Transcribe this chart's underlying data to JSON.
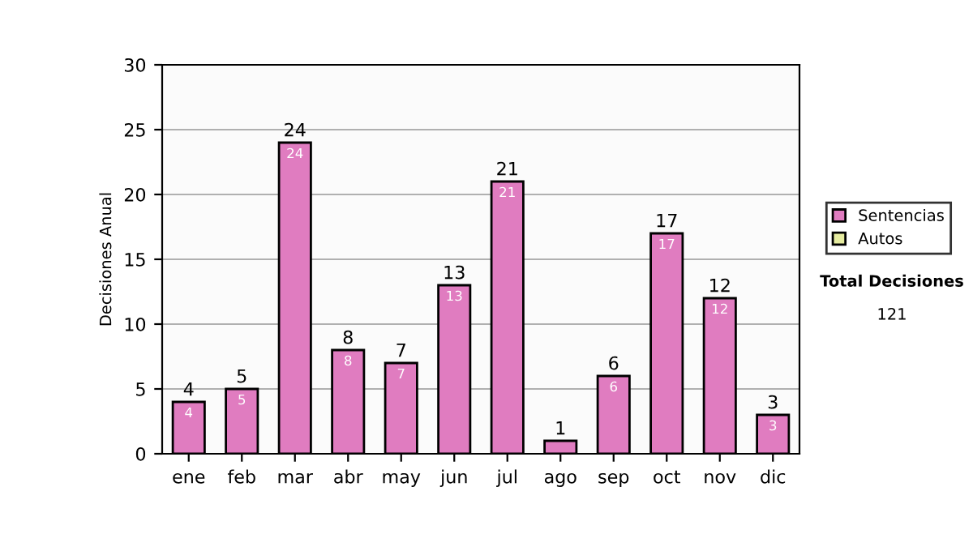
{
  "chart_data": {
    "type": "bar",
    "stacked": true,
    "ylabel": "Decisiones Anual",
    "categories": [
      "ene",
      "feb",
      "mar",
      "abr",
      "may",
      "jun",
      "jul",
      "ago",
      "sep",
      "oct",
      "nov",
      "dic"
    ],
    "series": [
      {
        "name": "Sentencias",
        "color": "#e07cc0",
        "values": [
          4,
          5,
          24,
          8,
          7,
          13,
          21,
          1,
          6,
          17,
          12,
          3
        ],
        "value_labels": [
          "4",
          "5",
          "24",
          "8",
          "7",
          "13",
          "21",
          null,
          "6",
          "17",
          "12",
          "3"
        ]
      },
      {
        "name": "Autos",
        "color": "#e6eca0",
        "values": [
          null,
          null,
          null,
          null,
          null,
          null,
          null,
          null,
          null,
          null,
          null,
          null
        ]
      }
    ],
    "totals": [
      "4",
      "5",
      "24",
      "8",
      "7",
      "13",
      "21",
      "1",
      "6",
      "17",
      "12",
      "3"
    ],
    "ylim": [
      0,
      30
    ],
    "yticks": [
      0,
      5,
      10,
      15,
      20,
      25,
      30
    ],
    "grid": "y",
    "legend": "right",
    "annotations": [
      "Total Decisiones",
      "121"
    ]
  }
}
